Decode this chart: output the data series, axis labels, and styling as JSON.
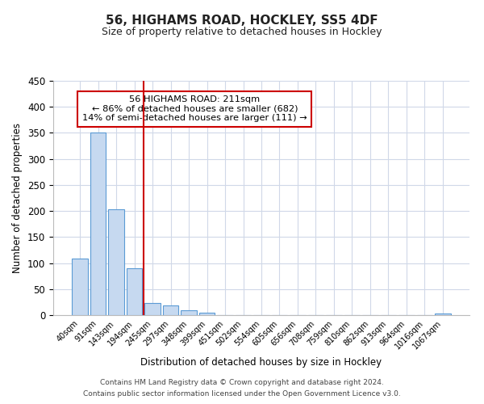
{
  "title": "56, HIGHAMS ROAD, HOCKLEY, SS5 4DF",
  "subtitle": "Size of property relative to detached houses in Hockley",
  "xlabel": "Distribution of detached houses by size in Hockley",
  "ylabel": "Number of detached properties",
  "bar_labels": [
    "40sqm",
    "91sqm",
    "143sqm",
    "194sqm",
    "245sqm",
    "297sqm",
    "348sqm",
    "399sqm",
    "451sqm",
    "502sqm",
    "554sqm",
    "605sqm",
    "656sqm",
    "708sqm",
    "759sqm",
    "810sqm",
    "862sqm",
    "913sqm",
    "964sqm",
    "1016sqm",
    "1067sqm"
  ],
  "bar_values": [
    108,
    350,
    203,
    90,
    24,
    18,
    10,
    5,
    0,
    0,
    0,
    0,
    0,
    0,
    0,
    0,
    0,
    0,
    0,
    0,
    3
  ],
  "bar_color": "#c6d9f0",
  "bar_edge_color": "#5b9bd5",
  "vline_color": "#cc0000",
  "annotation_title": "56 HIGHAMS ROAD: 211sqm",
  "annotation_line1": "← 86% of detached houses are smaller (682)",
  "annotation_line2": "14% of semi-detached houses are larger (111) →",
  "annotation_box_color": "#ffffff",
  "annotation_box_edge": "#cc0000",
  "ylim": [
    0,
    450
  ],
  "yticks": [
    0,
    50,
    100,
    150,
    200,
    250,
    300,
    350,
    400,
    450
  ],
  "background_color": "#ffffff",
  "grid_color": "#d0d8e8",
  "footnote1": "Contains HM Land Registry data © Crown copyright and database right 2024.",
  "footnote2": "Contains public sector information licensed under the Open Government Licence v3.0."
}
